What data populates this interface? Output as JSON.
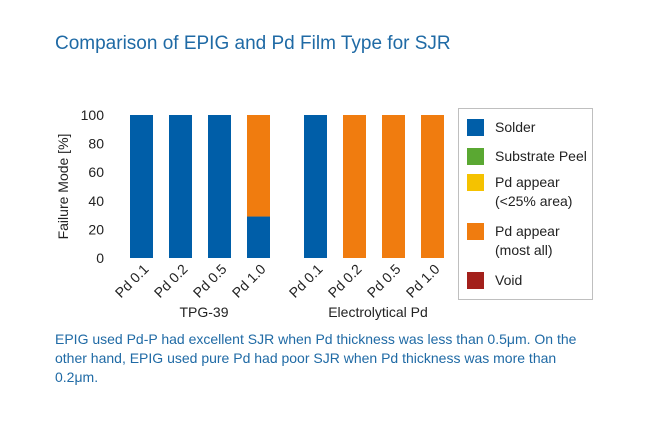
{
  "title": "Comparison of EPIG and Pd Film Type for SJR",
  "caption": "EPIG used Pd-P had excellent SJR when Pd thickness was less than 0.5μm. On the other hand, EPIG used pure Pd had poor SJR when Pd thickness was more than 0.2μm.",
  "chart_data": {
    "type": "bar",
    "stacked": true,
    "title": "Comparison of EPIG and Pd Film Type for SJR",
    "ylabel": "Failure Mode [%]",
    "xlabel": "",
    "ylim": [
      0,
      100
    ],
    "yticks": [
      0,
      20,
      40,
      60,
      80,
      100
    ],
    "grid": false,
    "legend_position": "right",
    "groups": [
      {
        "name": "TPG-39",
        "categories": [
          "Pd 0.1",
          "Pd 0.2",
          "Pd 0.5",
          "Pd 1.0"
        ]
      },
      {
        "name": "Electrolytical Pd",
        "categories": [
          "Pd 0.1",
          "Pd 0.2",
          "Pd 0.5",
          "Pd 1.0"
        ]
      }
    ],
    "series": [
      {
        "name": "Solder",
        "color": "#005ea8",
        "values": [
          100,
          100,
          100,
          29,
          100,
          0,
          0,
          0
        ]
      },
      {
        "name": "Substrate Peel",
        "color": "#5aa832",
        "values": [
          0,
          0,
          0,
          0,
          0,
          0,
          0,
          0
        ]
      },
      {
        "name": "Pd appear\n(<25% area)",
        "color": "#f5c200",
        "values": [
          0,
          0,
          0,
          0,
          0,
          0,
          0,
          0
        ]
      },
      {
        "name": "Pd appear\n(most all)",
        "color": "#f07c0f",
        "values": [
          0,
          0,
          0,
          71,
          0,
          100,
          100,
          100
        ]
      },
      {
        "name": "Void",
        "color": "#a3201b",
        "values": [
          0,
          0,
          0,
          0,
          0,
          0,
          0,
          0
        ]
      }
    ]
  }
}
